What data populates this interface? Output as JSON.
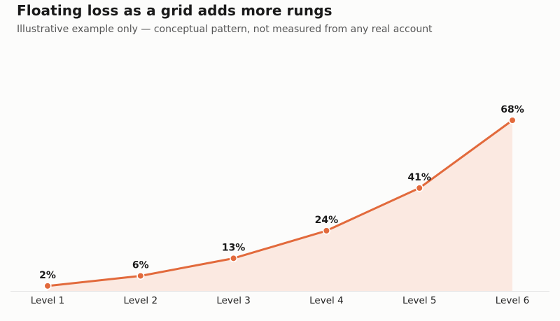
{
  "chart_data": {
    "type": "area",
    "title": "Floating loss as a grid adds more rungs",
    "subtitle": "Illustrative example only — conceptual pattern, not measured from any real account",
    "categories": [
      "Level 1",
      "Level 2",
      "Level 3",
      "Level 4",
      "Level 5",
      "Level 6"
    ],
    "values": [
      2,
      6,
      13,
      24,
      41,
      68
    ],
    "data_labels": [
      "2%",
      "6%",
      "13%",
      "24%",
      "41%",
      "68%"
    ],
    "xlabel": "",
    "ylabel": "",
    "ylim": [
      0,
      68
    ],
    "grid": false,
    "legend": "none",
    "colors": {
      "line": "#e26a3c",
      "fill": "#fbe9e1",
      "marker_stroke": "#ffffff",
      "baseline": "#e4e4e4"
    }
  }
}
